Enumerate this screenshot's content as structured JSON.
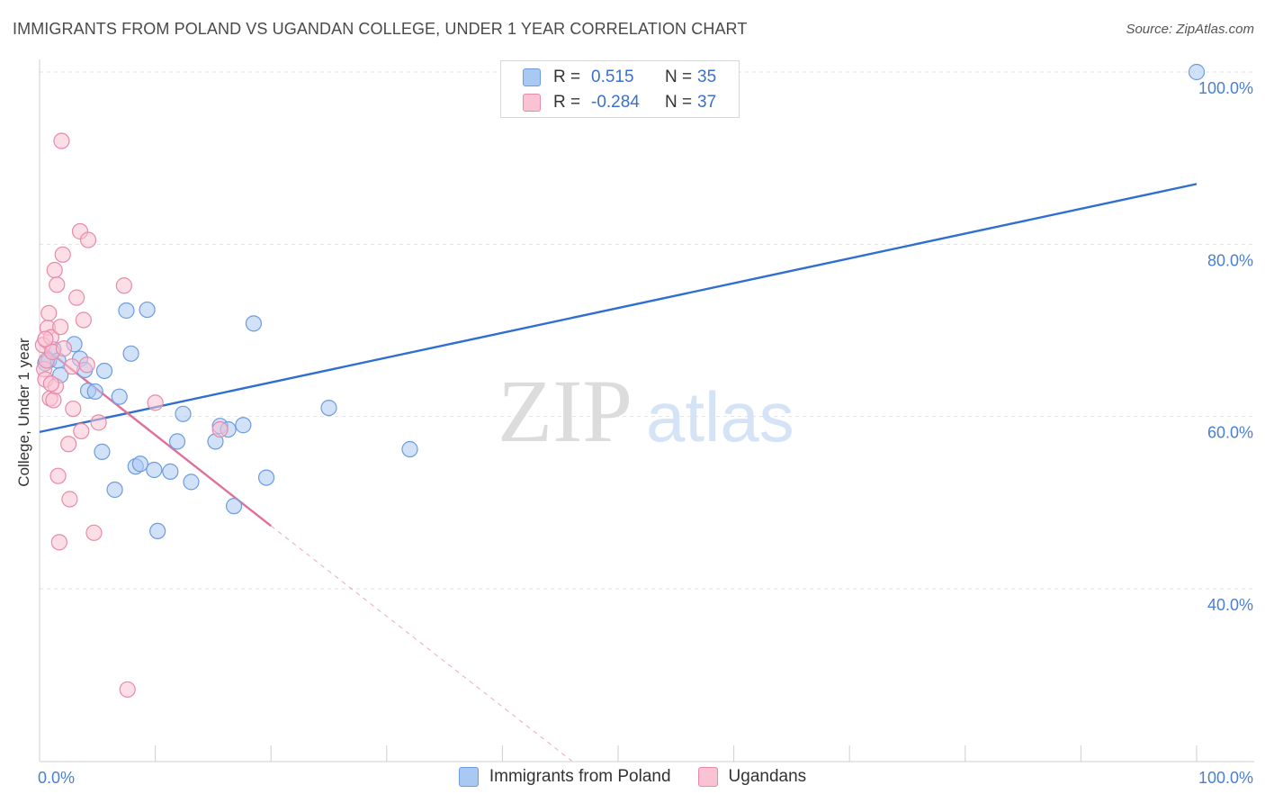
{
  "title": "IMMIGRANTS FROM POLAND VS UGANDAN COLLEGE, UNDER 1 YEAR CORRELATION CHART",
  "source": "Source: ZipAtlas.com",
  "watermark": {
    "zip": "ZIP",
    "atlas": "atlas"
  },
  "legend": {
    "rows": [
      {
        "r_label": "R =",
        "r_value": "0.515",
        "n_label": "N =",
        "n_value": "35",
        "color": "#a9c8f2",
        "border": "#6d9ce0"
      },
      {
        "r_label": "R =",
        "r_value": "-0.284",
        "n_label": "N =",
        "n_value": "37",
        "color": "#f9c3d4",
        "border": "#e88aa8"
      }
    ]
  },
  "bottom_legend": [
    {
      "label": "Immigrants from Poland",
      "color": "#a9c8f2",
      "border": "#6d9ce0"
    },
    {
      "label": "Ugandans",
      "color": "#f9c3d4",
      "border": "#e88aa8"
    }
  ],
  "chart_data": {
    "type": "scatter",
    "title": "IMMIGRANTS FROM POLAND VS UGANDAN COLLEGE, UNDER 1 YEAR CORRELATION CHART",
    "xlabel": "",
    "ylabel": "College, Under 1 year",
    "xlim": [
      0,
      100
    ],
    "ylim": [
      20,
      100
    ],
    "x_tick_labels": [
      {
        "value": 0,
        "label": "0.0%"
      },
      {
        "value": 100,
        "label": "100.0%"
      }
    ],
    "y_tick_labels": [
      {
        "value": 100,
        "label": "100.0%"
      },
      {
        "value": 80,
        "label": "80.0%"
      },
      {
        "value": 60,
        "label": "60.0%"
      },
      {
        "value": 40,
        "label": "40.0%"
      }
    ],
    "series": [
      {
        "name": "Immigrants from Poland",
        "color": "#a9c8f2",
        "stroke": "#6d9ce0",
        "line_color": "#2f6fd0",
        "trend": {
          "x0": 0,
          "y0": 58.2,
          "x1": 100,
          "y1": 87.0
        },
        "points": [
          [
            0.5,
            66.2
          ],
          [
            0.8,
            66.5
          ],
          [
            1.2,
            67.8
          ],
          [
            1.6,
            66.5
          ],
          [
            1.8,
            64.8
          ],
          [
            3.0,
            68.4
          ],
          [
            3.5,
            66.7
          ],
          [
            3.9,
            65.4
          ],
          [
            4.2,
            63.0
          ],
          [
            4.8,
            62.9
          ],
          [
            5.6,
            65.3
          ],
          [
            5.4,
            55.9
          ],
          [
            6.5,
            51.5
          ],
          [
            6.9,
            62.3
          ],
          [
            7.5,
            72.3
          ],
          [
            7.9,
            67.3
          ],
          [
            8.3,
            54.2
          ],
          [
            8.7,
            54.5
          ],
          [
            9.3,
            72.4
          ],
          [
            9.9,
            53.8
          ],
          [
            10.2,
            46.7
          ],
          [
            11.3,
            53.6
          ],
          [
            11.9,
            57.1
          ],
          [
            12.4,
            60.3
          ],
          [
            13.1,
            52.4
          ],
          [
            15.2,
            57.1
          ],
          [
            15.6,
            58.9
          ],
          [
            16.3,
            58.5
          ],
          [
            16.8,
            49.6
          ],
          [
            17.6,
            59.0
          ],
          [
            18.5,
            70.8
          ],
          [
            19.6,
            52.9
          ],
          [
            25.0,
            61.0
          ],
          [
            32.0,
            56.2
          ],
          [
            100.0,
            100.0
          ]
        ]
      },
      {
        "name": "Ugandans",
        "color": "#f9c3d4",
        "stroke": "#e88aa8",
        "line_color": "#e0709a",
        "trend": {
          "x0": 0,
          "y0": 68.4,
          "x1": 20,
          "y1": 47.3
        },
        "trend_dashed": {
          "x0": 20,
          "y0": 47.3,
          "x1": 46,
          "y1": 20.0
        },
        "points": [
          [
            0.3,
            68.3
          ],
          [
            0.4,
            65.5
          ],
          [
            0.5,
            64.3
          ],
          [
            0.6,
            66.5
          ],
          [
            0.7,
            70.3
          ],
          [
            0.8,
            72.0
          ],
          [
            0.9,
            62.1
          ],
          [
            1.0,
            69.2
          ],
          [
            1.1,
            67.5
          ],
          [
            1.2,
            61.9
          ],
          [
            1.3,
            77.0
          ],
          [
            1.4,
            63.5
          ],
          [
            1.5,
            75.3
          ],
          [
            1.6,
            53.1
          ],
          [
            1.7,
            45.4
          ],
          [
            1.8,
            70.4
          ],
          [
            1.9,
            92.0
          ],
          [
            2.0,
            78.8
          ],
          [
            2.1,
            67.9
          ],
          [
            2.5,
            56.8
          ],
          [
            2.6,
            50.4
          ],
          [
            2.8,
            65.8
          ],
          [
            2.9,
            60.9
          ],
          [
            3.2,
            73.8
          ],
          [
            3.5,
            81.5
          ],
          [
            3.6,
            58.3
          ],
          [
            3.8,
            71.2
          ],
          [
            4.1,
            66.0
          ],
          [
            4.2,
            80.5
          ],
          [
            4.7,
            46.5
          ],
          [
            5.1,
            59.3
          ],
          [
            7.3,
            75.2
          ],
          [
            7.6,
            28.3
          ],
          [
            10.0,
            61.6
          ],
          [
            15.6,
            58.5
          ],
          [
            0.5,
            69.0
          ],
          [
            1.0,
            63.8
          ]
        ]
      }
    ]
  }
}
